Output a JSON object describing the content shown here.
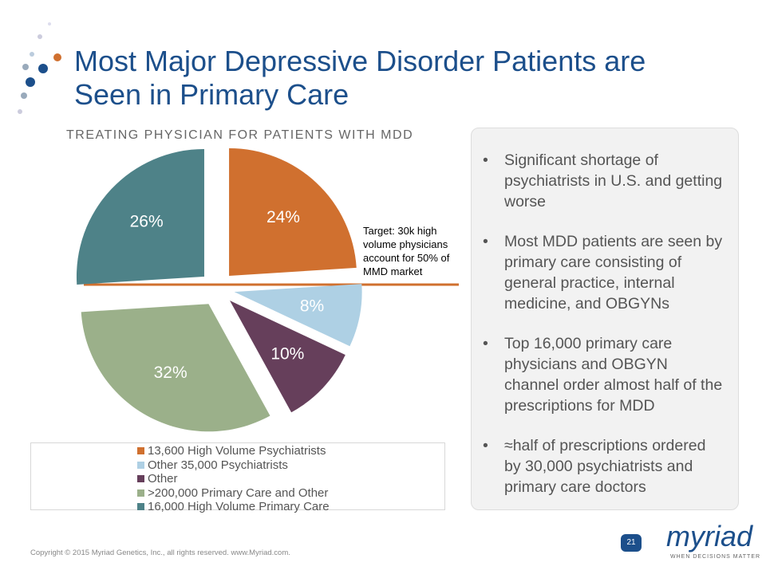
{
  "title": "Most Major Depressive Disorder Patients are Seen in Primary Care",
  "chart_data": {
    "type": "pie",
    "title": "TREATING PHYSICIAN FOR PATIENTS WITH MDD",
    "categories": [
      "13,600 High Volume Psychiatrists",
      "Other 35,000 Psychiatrists",
      "Other",
      ">200,000 Primary Care and Other",
      "16,000 High Volume Primary Care"
    ],
    "values": [
      24,
      8,
      10,
      32,
      26
    ],
    "value_labels": [
      "24%",
      "8%",
      "10%",
      "32%",
      "26%"
    ],
    "colors": [
      "#d0702f",
      "#aed0e4",
      "#663f5b",
      "#9bb08a",
      "#4e8288"
    ],
    "annotation": "Target: 30k high volume physicians account for 50% of MMD market"
  },
  "bullets": [
    "Significant shortage of psychiatrists in U.S. and getting worse",
    "Most MDD patients are seen by primary care consisting of general practice, internal medicine, and OBGYNs",
    "Top 16,000 primary care physicians and OBGYN channel order almost half of the prescriptions for MDD",
    "≈half of prescriptions ordered by 30,000 psychiatrists and primary care doctors"
  ],
  "footer": "Copyright © 2015 Myriad Genetics, Inc., all rights reserved.  www.Myriad.com.",
  "page_number": "21",
  "logo": {
    "name": "myriad",
    "tagline": "WHEN DECISIONS MATTER"
  }
}
